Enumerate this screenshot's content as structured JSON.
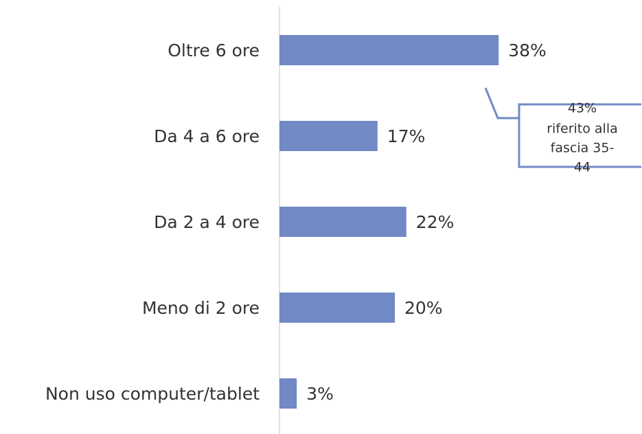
{
  "chart_data": {
    "type": "bar",
    "orientation": "horizontal",
    "categories": [
      "Oltre 6 ore",
      "Da 4 a 6 ore",
      "Da 2 a 4 ore",
      "Meno di 2 ore",
      "Non uso computer/tablet"
    ],
    "values": [
      38,
      17,
      22,
      20,
      3
    ],
    "value_labels": [
      "38%",
      "17%",
      "22%",
      "20%",
      "3%"
    ],
    "color": "#7189c4",
    "annotation": [
      "43%",
      "riferito alla",
      "fascia 35-",
      "44"
    ]
  }
}
